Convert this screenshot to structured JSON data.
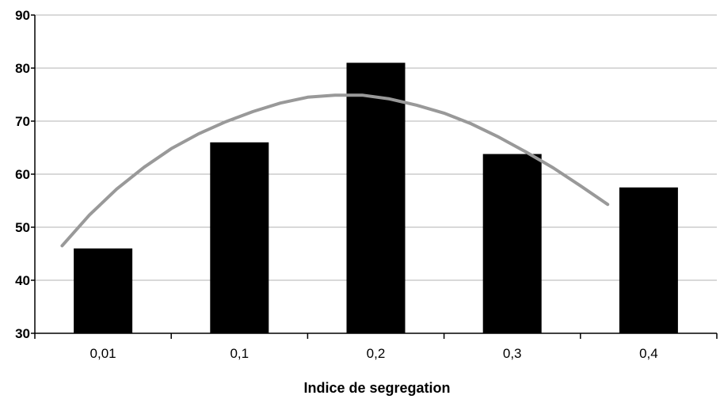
{
  "chart_data": {
    "type": "bar",
    "title": "",
    "xlabel": "Indice de segregation",
    "ylabel": "",
    "categories": [
      "0,01",
      "0,1",
      "0,2",
      "0,3",
      "0,4"
    ],
    "series": [
      {
        "values": [
          46,
          66,
          81,
          63.8,
          57.5
        ]
      }
    ],
    "trendline": {
      "x": [
        0.2,
        0.4,
        0.6,
        0.8,
        1.0,
        1.2,
        1.4,
        1.6,
        1.8,
        2.0,
        2.2,
        2.4,
        2.6,
        2.8,
        3.0,
        3.2,
        3.4,
        3.6,
        3.8,
        4.0,
        4.2
      ],
      "y": [
        46.5,
        52.3,
        57.2,
        61.3,
        64.8,
        67.6,
        69.9,
        71.8,
        73.4,
        74.5,
        74.9,
        74.9,
        74.2,
        73.0,
        71.5,
        69.5,
        67.0,
        64.2,
        61.2,
        57.8,
        54.3
      ]
    },
    "ylim": [
      30,
      90
    ],
    "yticks": [
      "30",
      "40",
      "50",
      "60",
      "70",
      "80",
      "90"
    ],
    "grid": true,
    "colors": {
      "bar": "#000000",
      "trend": "#999999",
      "plot_bg": "#ffffff",
      "grid": "#b3b3b3"
    }
  }
}
